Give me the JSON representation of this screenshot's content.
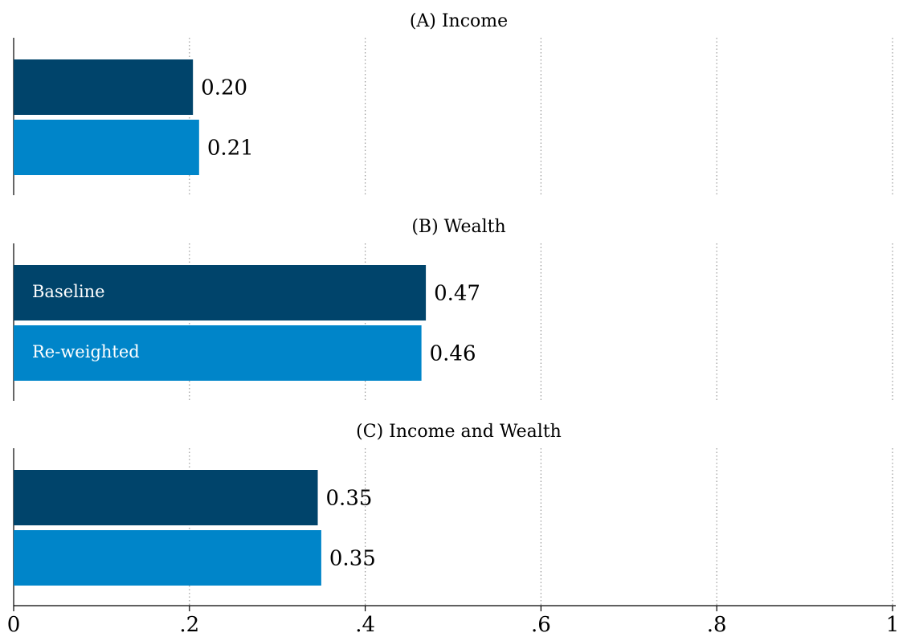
{
  "chart_data": [
    {
      "type": "bar",
      "orientation": "horizontal",
      "title": "(A) Income",
      "xlim": [
        0,
        1
      ],
      "xticks": [
        0.2,
        0.4,
        0.6,
        0.8,
        1
      ],
      "grid": true,
      "series": [
        {
          "color": "#00446b",
          "values": [
            0.204
          ],
          "value_labels": [
            "0.20"
          ]
        },
        {
          "color": "#0085c9",
          "values": [
            0.211
          ],
          "value_labels": [
            "0.21"
          ]
        }
      ]
    },
    {
      "type": "bar",
      "orientation": "horizontal",
      "title": "(B) Wealth",
      "xlim": [
        0,
        1
      ],
      "xticks": [
        0.2,
        0.4,
        0.6,
        0.8,
        1
      ],
      "grid": true,
      "series": [
        {
          "name": "Baseline",
          "color": "#00446b",
          "values": [
            0.469
          ],
          "value_labels": [
            "0.47"
          ]
        },
        {
          "name": "Re-weighted",
          "color": "#0085c9",
          "values": [
            0.464
          ],
          "value_labels": [
            "0.46"
          ]
        }
      ]
    },
    {
      "type": "bar",
      "orientation": "horizontal",
      "title": "(C) Income and Wealth",
      "xlim": [
        0,
        1
      ],
      "xticks": [
        0,
        {
          "value": 0.2,
          "label": ".2"
        },
        {
          "value": 0.4,
          "label": ".4"
        },
        {
          "value": 0.6,
          "label": ".6"
        },
        {
          "value": 0.8,
          "label": ".8"
        },
        1
      ],
      "grid": true,
      "series": [
        {
          "color": "#00446b",
          "values": [
            0.346
          ],
          "value_labels": [
            "0.35"
          ]
        },
        {
          "color": "#0085c9",
          "values": [
            0.35
          ],
          "value_labels": [
            "0.35"
          ]
        }
      ]
    }
  ]
}
